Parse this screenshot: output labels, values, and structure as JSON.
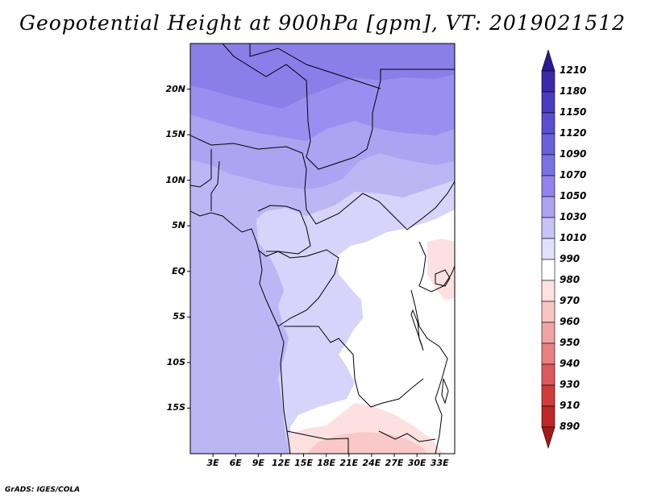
{
  "title": "Geopotential Height at 900hPa [gpm], VT: 2019021512",
  "credit": "GrADS: IGES/COLA",
  "map": {
    "variable": "Geopotential Height",
    "level": "900hPa",
    "units": "gpm",
    "valid_time": "2019021512",
    "lon_range": [
      0,
      35
    ],
    "lat_range": [
      -20,
      25
    ],
    "lat_labels": [
      "20N",
      "15N",
      "10N",
      "5N",
      "EQ",
      "5S",
      "10S",
      "15S"
    ],
    "lon_labels": [
      "3E",
      "6E",
      "9E",
      "12E",
      "15E",
      "18E",
      "21E",
      "24E",
      "27E",
      "30E",
      "33E"
    ]
  },
  "colorbar": {
    "labels": [
      "1210",
      "1180",
      "1150",
      "1120",
      "1090",
      "1070",
      "1050",
      "1030",
      "1010",
      "990",
      "980",
      "970",
      "960",
      "950",
      "940",
      "930",
      "910",
      "890"
    ],
    "colors": [
      "#2a1a96",
      "#3a2aaa",
      "#4a3cbe",
      "#5a4ed0",
      "#6a60dc",
      "#7c72e4",
      "#9284ec",
      "#aba2f0",
      "#c8c2f6",
      "#e2e0fa",
      "#ffffff",
      "#fde2e2",
      "#f8c4c4",
      "#f0a4a4",
      "#e88080",
      "#dd5a5a",
      "#cf3c3c",
      "#bf2626",
      "#a81818"
    ]
  },
  "colors": {
    "c1090": "#8a7ee8",
    "c1070": "#9a8ff0",
    "c1050": "#aca3f2",
    "c1030": "#bdb6f5",
    "c1010": "#d7d3fa",
    "c990": "#ffffff",
    "c980": "#fde0e0",
    "c970": "#f9c9c9"
  }
}
